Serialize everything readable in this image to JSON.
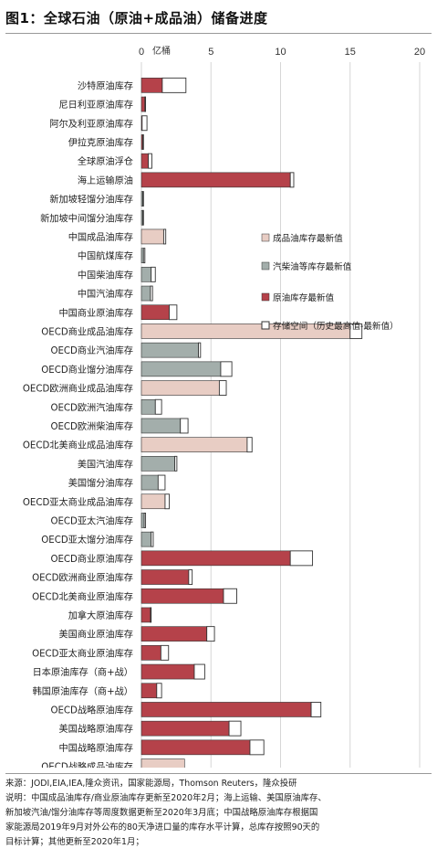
{
  "title": "图1：全球石油（原油+成品油）储备进度",
  "chart_data": {
    "type": "bar",
    "orientation": "horizontal",
    "unit_label": "亿桶",
    "xlim": [
      0,
      20
    ],
    "xticks": [
      0,
      5,
      10,
      15,
      20
    ],
    "legend_position": "right",
    "colors": {
      "product": "#e8cdc4",
      "diesel": "#a3aeab",
      "crude": "#b5424a",
      "space": "#ffffff",
      "outline": "#333333"
    },
    "legend": [
      {
        "type": "product",
        "label": "成品油库存最新值"
      },
      {
        "type": "diesel",
        "label": "汽柴油等库存最新值"
      },
      {
        "type": "crude",
        "label": "原油库存最新值"
      },
      {
        "type": "space",
        "label": "存储空间（历史最高值-最新值）"
      }
    ],
    "categories": [
      {
        "label": "沙特原油库存",
        "type": "crude",
        "value": 1.5,
        "space": 1.7
      },
      {
        "label": "尼日利亚原油库存",
        "type": "crude",
        "value": 0.25,
        "space": 0.05
      },
      {
        "label": "阿尔及利亚原油库存",
        "type": "crude",
        "value": 0.05,
        "space": 0.35
      },
      {
        "label": "伊拉克原油库存",
        "type": "crude",
        "value": 0.1,
        "space": 0.05
      },
      {
        "label": "全球原油浮仓",
        "type": "crude",
        "value": 0.5,
        "space": 0.25
      },
      {
        "label": "海上运输原油",
        "type": "crude",
        "value": 10.7,
        "space": 0.25
      },
      {
        "label": "新加坡轻馏分油库存",
        "type": "diesel",
        "value": 0.1,
        "space": 0.05
      },
      {
        "label": "新加坡中间馏分油库存",
        "type": "diesel",
        "value": 0.1,
        "space": 0.05
      },
      {
        "label": "中国成品油库存",
        "type": "product",
        "value": 1.6,
        "space": 0.15
      },
      {
        "label": "中国航煤库存",
        "type": "diesel",
        "value": 0.15,
        "space": 0.1
      },
      {
        "label": "中国柴油库存",
        "type": "diesel",
        "value": 0.7,
        "space": 0.3
      },
      {
        "label": "中国汽油库存",
        "type": "diesel",
        "value": 0.65,
        "space": 0.15
      },
      {
        "label": "中国商业原油库存",
        "type": "crude",
        "value": 2.0,
        "space": 0.55
      },
      {
        "label": "OECD商业成品油库存",
        "type": "product",
        "value": 15.0,
        "space": 0.85
      },
      {
        "label": "OECD商业汽油库存",
        "type": "diesel",
        "value": 4.1,
        "space": 0.15
      },
      {
        "label": "OECD商业馏分油库存",
        "type": "diesel",
        "value": 5.7,
        "space": 0.8
      },
      {
        "label": "OECD欧洲商业成品油库存",
        "type": "product",
        "value": 5.6,
        "space": 0.5
      },
      {
        "label": "OECD欧洲汽油库存",
        "type": "diesel",
        "value": 1.0,
        "space": 0.45
      },
      {
        "label": "OECD欧洲柴油库存",
        "type": "diesel",
        "value": 2.8,
        "space": 0.55
      },
      {
        "label": "OECD北美商业成品油库存",
        "type": "product",
        "value": 7.6,
        "space": 0.35
      },
      {
        "label": "美国汽油库存",
        "type": "diesel",
        "value": 2.4,
        "space": 0.15
      },
      {
        "label": "美国馏分油库存",
        "type": "diesel",
        "value": 1.2,
        "space": 0.5
      },
      {
        "label": "OECD亚太商业成品油库存",
        "type": "product",
        "value": 1.7,
        "space": 0.3
      },
      {
        "label": "OECD亚太汽油库存",
        "type": "diesel",
        "value": 0.2,
        "space": 0.1
      },
      {
        "label": "OECD亚太馏分油库存",
        "type": "diesel",
        "value": 0.7,
        "space": 0.15
      },
      {
        "label": "OECD商业原油库存",
        "type": "crude",
        "value": 10.7,
        "space": 1.6
      },
      {
        "label": "OECD欧洲商业原油库存",
        "type": "crude",
        "value": 3.4,
        "space": 0.25
      },
      {
        "label": "OECD北美商业原油库存",
        "type": "crude",
        "value": 5.9,
        "space": 0.95
      },
      {
        "label": "加拿大原油库存",
        "type": "crude",
        "value": 0.65,
        "space": 0.05
      },
      {
        "label": "美国商业原油库存",
        "type": "crude",
        "value": 4.7,
        "space": 0.55
      },
      {
        "label": "OECD亚太商业原油库存",
        "type": "crude",
        "value": 1.4,
        "space": 0.55
      },
      {
        "label": "日本原油库存（商+战）",
        "type": "crude",
        "value": 3.8,
        "space": 0.75
      },
      {
        "label": "韩国原油库存（商+战）",
        "type": "crude",
        "value": 1.1,
        "space": 0.35
      },
      {
        "label": "OECD战略原油库存",
        "type": "crude",
        "value": 12.2,
        "space": 0.7
      },
      {
        "label": "美国战略原油库存",
        "type": "crude",
        "value": 6.3,
        "space": 0.85
      },
      {
        "label": "中国战略原油库存",
        "type": "crude",
        "value": 7.8,
        "space": 1.0
      },
      {
        "label": "OECD战略成品油库存",
        "type": "product",
        "value": 3.1,
        "space": 0.0
      }
    ]
  },
  "footer": {
    "source": "来源：JODI,EIA,IEA,隆众资讯，国家能源局，Thomson Reuters，隆众投研",
    "note_lines": [
      "说明：中国成品油库存/商业原油库存更新至2020年2月；海上运输、美国原油库存、",
      "新加坡汽油/馏分油库存等周度数据更新至2020年3月底；中国战略原油库存根据国",
      "家能源局2019年9月对外公布的80天净进口量的库存水平计算，总库存按照90天的",
      "目标计算；其他更新至2020年1月；"
    ]
  }
}
